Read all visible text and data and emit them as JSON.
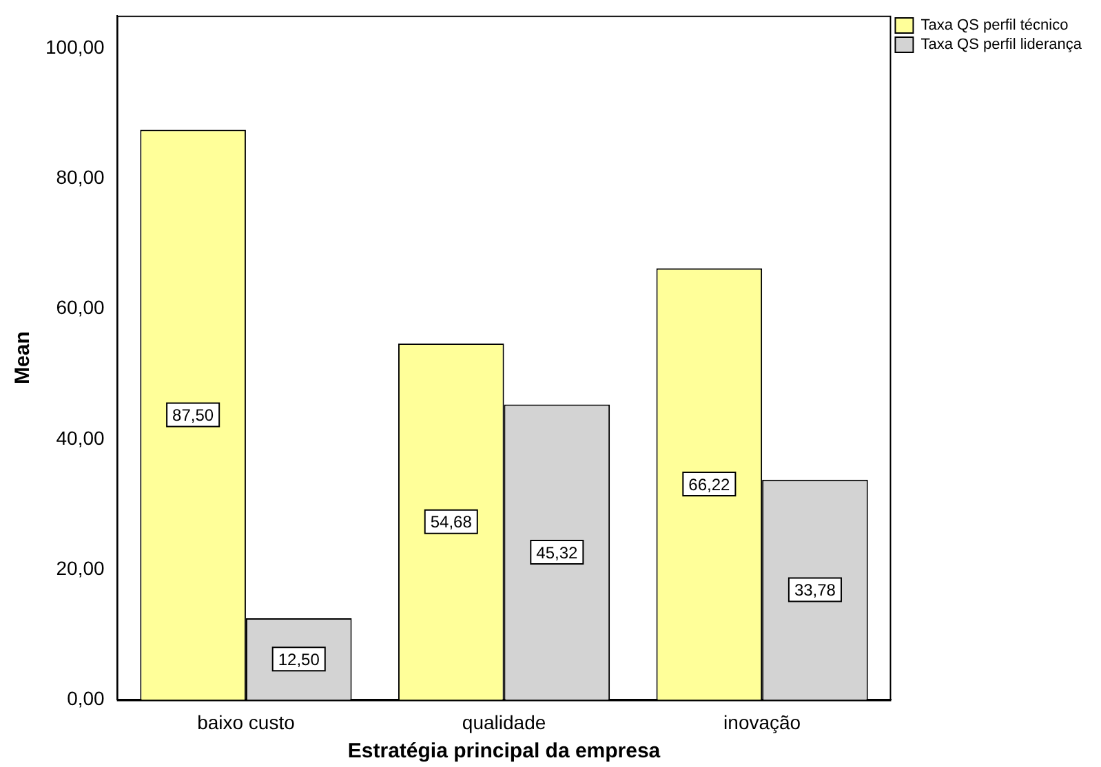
{
  "chart_data": {
    "type": "bar",
    "xlabel": "Estratégia principal da empresa",
    "ylabel": "Mean",
    "categories": [
      "baixo custo",
      "qualidade",
      "inovação"
    ],
    "series": [
      {
        "name": "Taxa QS perfil técnico",
        "color": "#ffff99",
        "values": [
          87.5,
          54.68,
          66.22
        ],
        "value_labels": [
          "87,50",
          "54,68",
          "66,22"
        ]
      },
      {
        "name": "Taxa QS perfil liderança",
        "color": "#d3d3d3",
        "values": [
          12.5,
          45.32,
          33.78
        ],
        "value_labels": [
          "12,50",
          "45,32",
          "33,78"
        ]
      }
    ],
    "ylim": [
      0,
      105
    ],
    "yticks": [
      {
        "value": 0,
        "label": "0,00"
      },
      {
        "value": 20,
        "label": "20,00"
      },
      {
        "value": 40,
        "label": "40,00"
      },
      {
        "value": 60,
        "label": "60,00"
      },
      {
        "value": 80,
        "label": "80,00"
      },
      {
        "value": 100,
        "label": "100,00"
      }
    ],
    "grid": false,
    "legend": "top right"
  }
}
